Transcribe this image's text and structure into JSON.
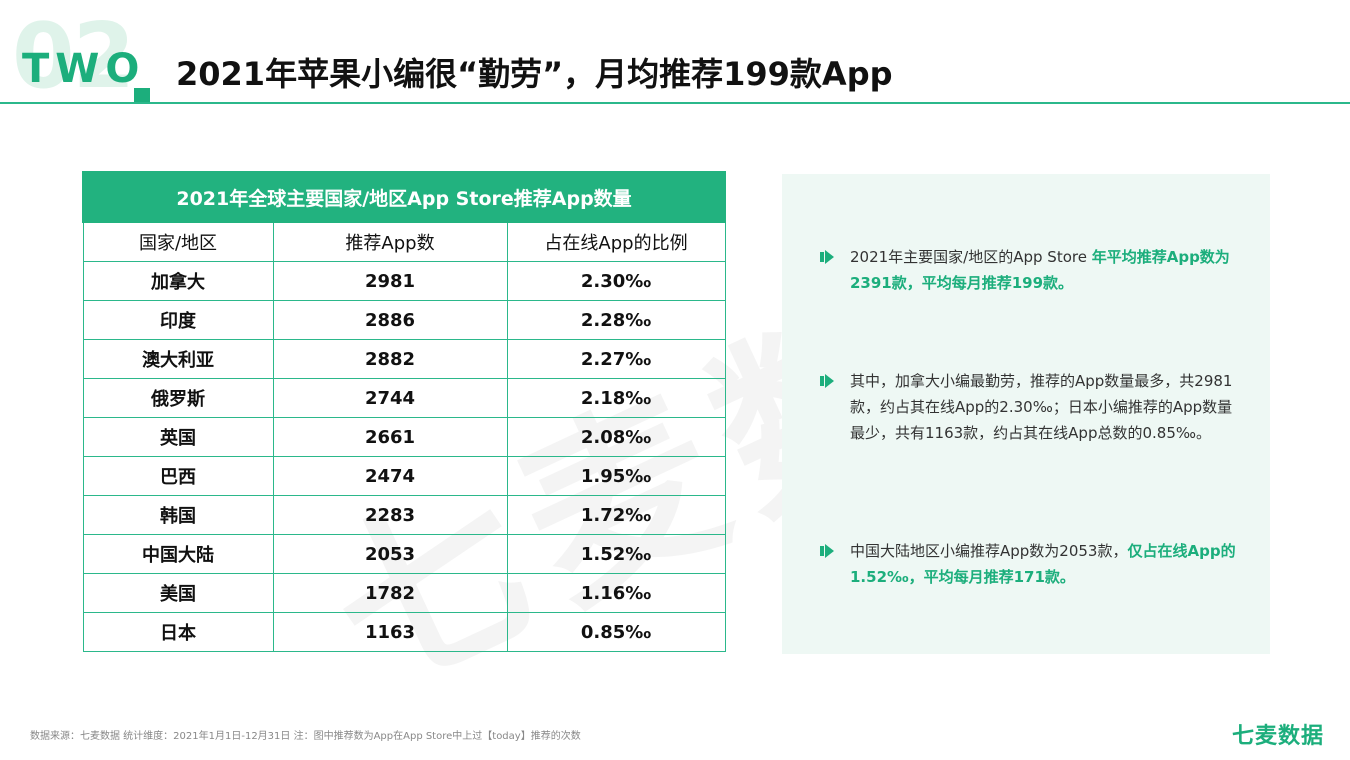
{
  "header": {
    "section_number": "02",
    "section_word": "TWO",
    "title": "2021年苹果小编很“勤劳”，月均推荐199款App"
  },
  "table": {
    "title": "2021年全球主要国家/地区App Store推荐App数量",
    "columns": [
      "国家/地区",
      "推荐App数",
      "占在线App的比例"
    ],
    "rows": [
      {
        "region": "加拿大",
        "count": "2981",
        "ratio": "2.30‰"
      },
      {
        "region": "印度",
        "count": "2886",
        "ratio": "2.28‰"
      },
      {
        "region": "澳大利亚",
        "count": "2882",
        "ratio": "2.27‰"
      },
      {
        "region": "俄罗斯",
        "count": "2744",
        "ratio": "2.18‰"
      },
      {
        "region": "英国",
        "count": "2661",
        "ratio": "2.08‰"
      },
      {
        "region": "巴西",
        "count": "2474",
        "ratio": "1.95‰"
      },
      {
        "region": "韩国",
        "count": "2283",
        "ratio": "1.72‰"
      },
      {
        "region": "中国大陆",
        "count": "2053",
        "ratio": "1.52‰"
      },
      {
        "region": "美国",
        "count": "1782",
        "ratio": "1.16‰"
      },
      {
        "region": "日本",
        "count": "1163",
        "ratio": "0.85‰"
      }
    ]
  },
  "insights": [
    {
      "text": "2021年主要国家/地区的App Store ",
      "highlight": "年平均推荐App数为2391款，平均每月推荐199款。"
    },
    {
      "text": "其中，加拿大小编最勤劳，推荐的App数量最多，共2981款，约占其在线App的2.30‰；日本小编推荐的App数量最少，共有1163款，约占其在线App总数的0.85‰。",
      "highlight": ""
    },
    {
      "text": "中国大陆地区小编推荐App数为2053款，",
      "highlight": "仅占在线App的1.52‰，平均每月推荐171款。"
    }
  ],
  "watermark": "七麦数据",
  "footer": {
    "source": "数据来源：七麦数据  统计维度：2021年1月1日-12月31日  注：图中推荐数为App在App Store中上过【today】推荐的次数",
    "brand": "七麦数据"
  },
  "colors": {
    "accent": "#1cae7c",
    "panel_bg": "#eef8f4"
  }
}
